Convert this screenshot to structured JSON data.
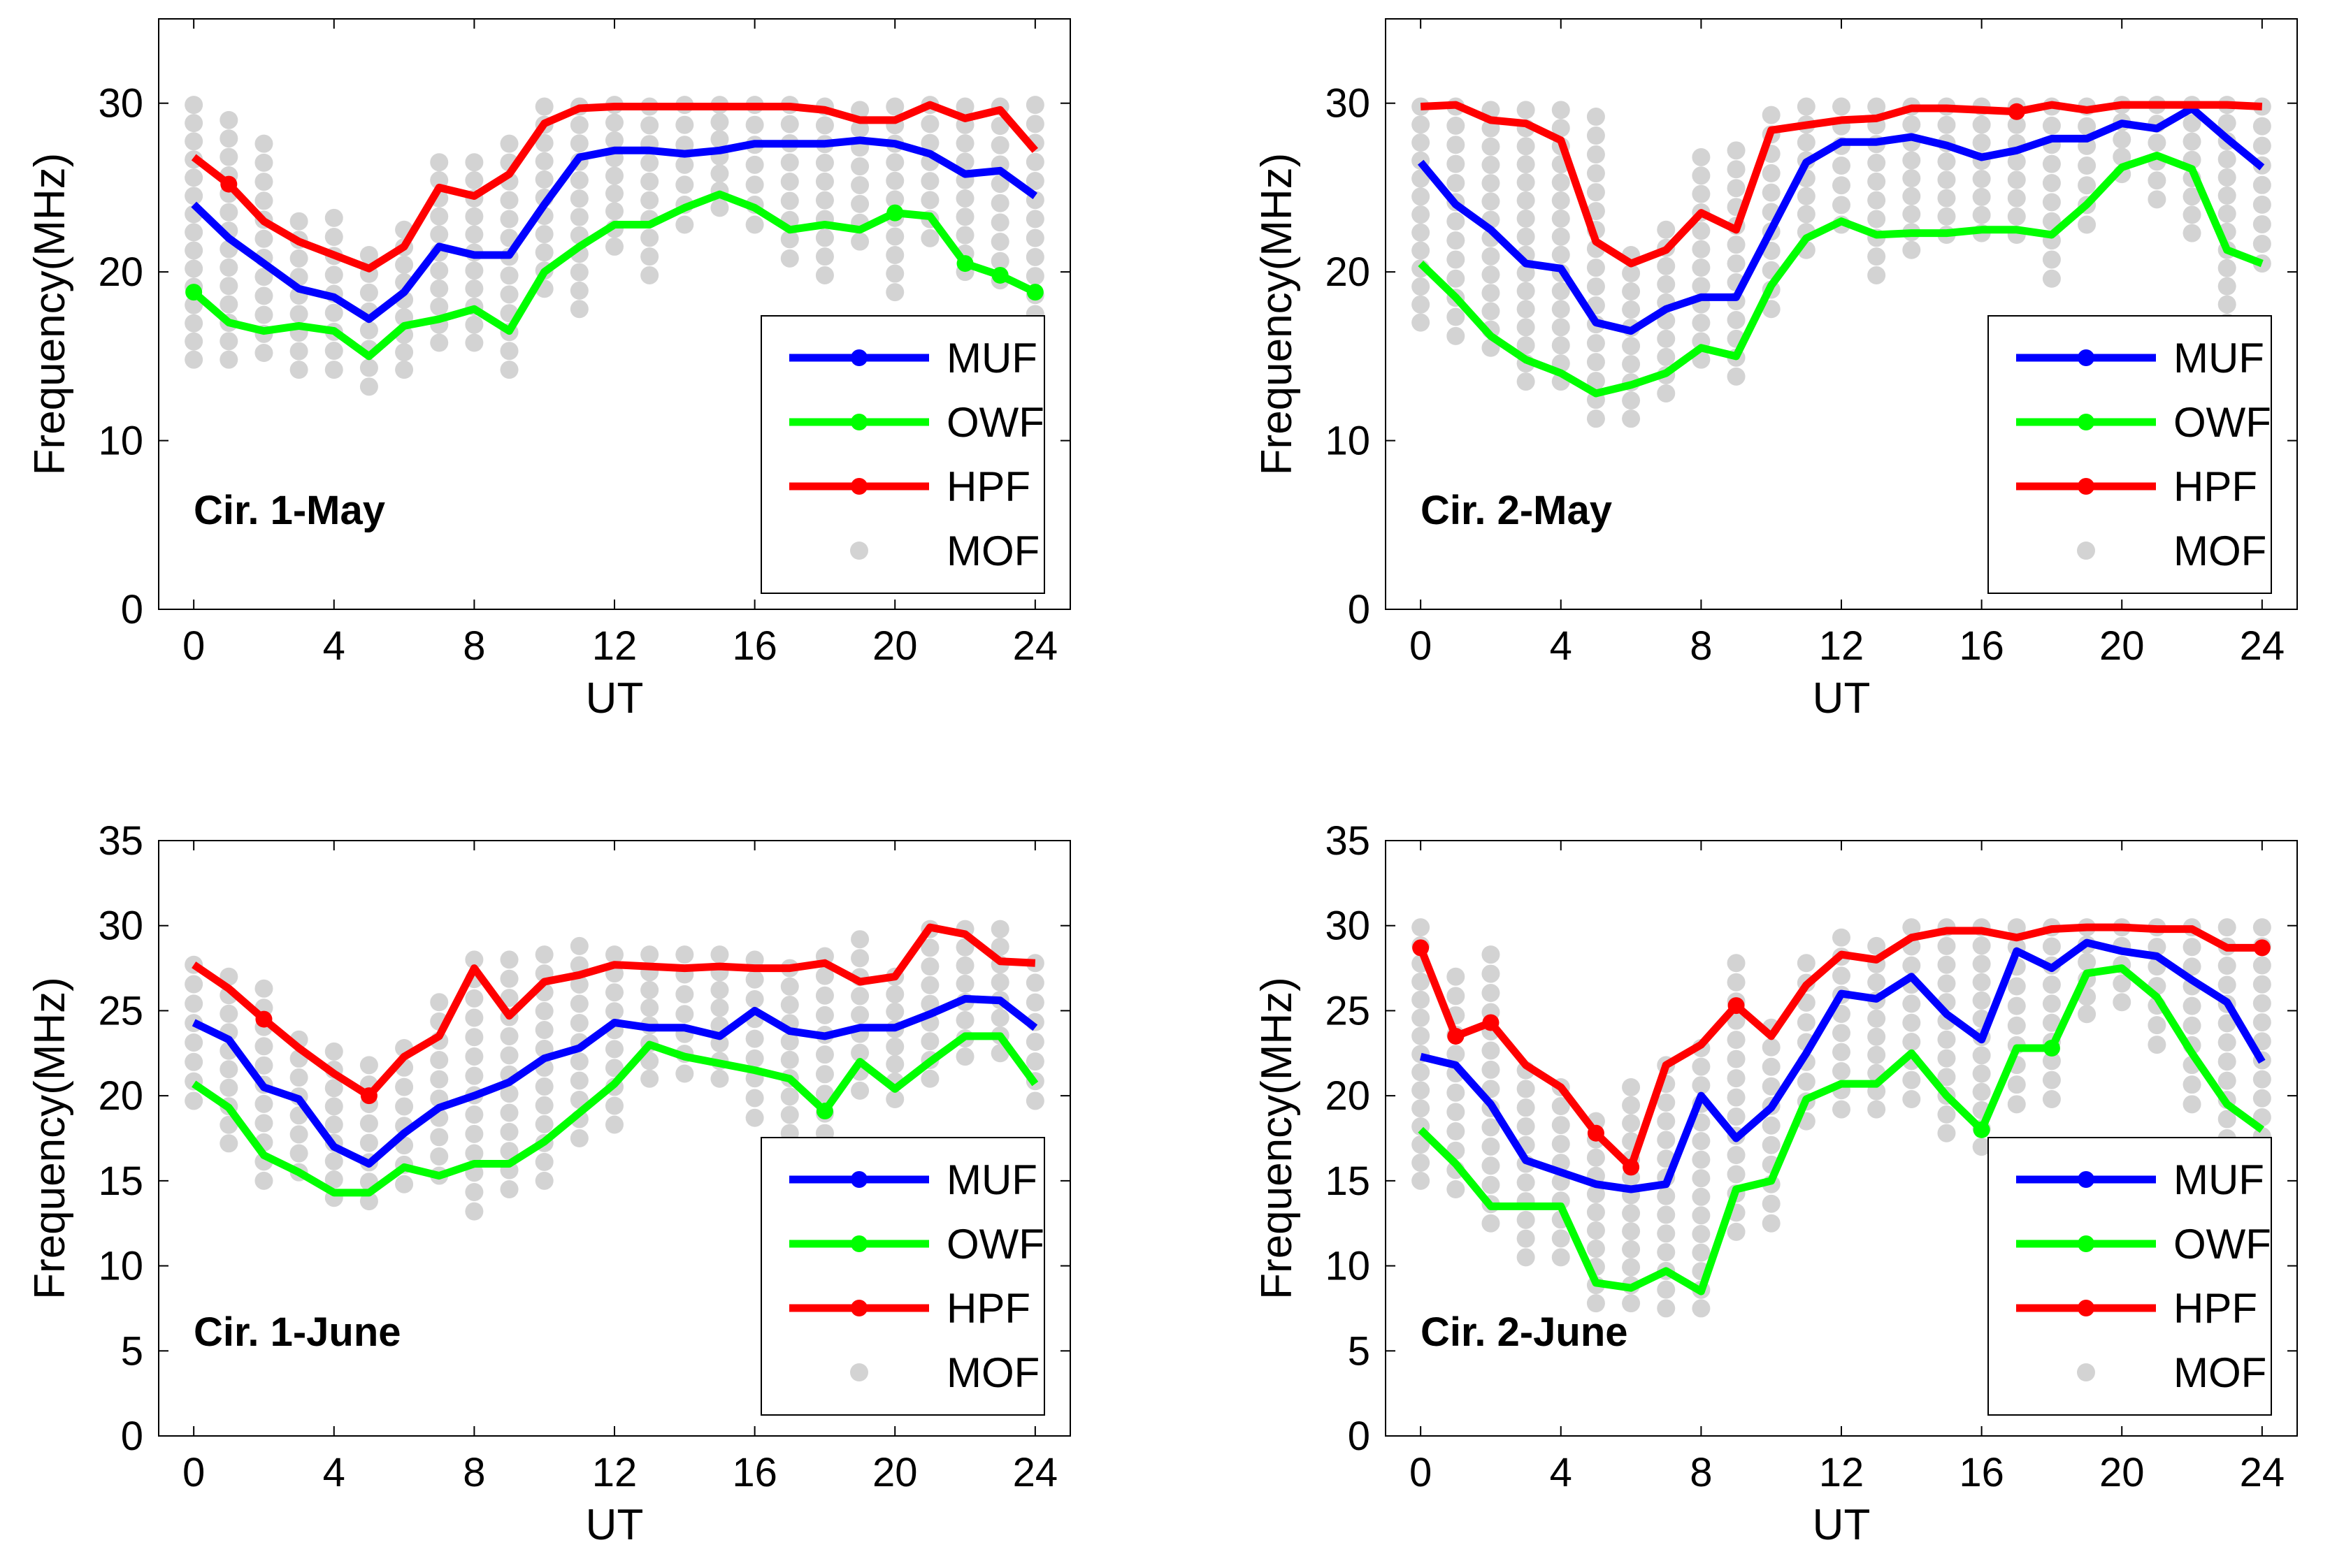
{
  "figure": {
    "colors": {
      "MUF": "#0000ff",
      "OWF": "#00ff00",
      "HPF": "#ff0000",
      "MOF": "#d3d3d3",
      "axis": "#000000"
    }
  },
  "chart_data": [
    {
      "type": "line",
      "panel": "top-left",
      "annotation": "Cir. 1-May",
      "xlabel": "UT",
      "ylabel": "Frequency(MHz)",
      "xlim": [
        -1,
        25
      ],
      "ylim": [
        0,
        35
      ],
      "xticks": [
        0,
        4,
        8,
        12,
        16,
        20,
        24
      ],
      "yticks": [
        0,
        10,
        20,
        30
      ],
      "legend": {
        "placement": "bottom-right",
        "entries": [
          "MUF",
          "OWF",
          "HPF",
          "MOF"
        ]
      },
      "x": [
        0,
        1,
        2,
        3,
        4,
        5,
        6,
        7,
        8,
        9,
        10,
        11,
        12,
        13,
        14,
        15,
        16,
        17,
        18,
        19,
        20,
        21,
        22,
        23,
        24
      ],
      "series": [
        {
          "name": "MUF",
          "values": [
            24.0,
            22.0,
            20.5,
            19.0,
            18.5,
            17.2,
            18.8,
            21.5,
            21.0,
            21.0,
            24.0,
            26.8,
            27.2,
            27.2,
            27.0,
            27.2,
            27.6,
            27.6,
            27.6,
            27.8,
            27.6,
            27.0,
            25.8,
            26.0,
            24.5
          ]
        },
        {
          "name": "OWF",
          "values": [
            18.8,
            17.0,
            16.5,
            16.8,
            16.5,
            15.0,
            16.8,
            17.2,
            17.8,
            16.5,
            20.0,
            21.5,
            22.8,
            22.8,
            23.8,
            24.6,
            23.8,
            22.5,
            22.8,
            22.5,
            23.5,
            23.3,
            20.5,
            19.8,
            18.8
          ]
        },
        {
          "name": "HPF",
          "values": [
            26.8,
            25.2,
            23.0,
            21.8,
            21.0,
            20.2,
            21.5,
            25.0,
            24.5,
            25.8,
            28.8,
            29.7,
            29.8,
            29.8,
            29.8,
            29.8,
            29.8,
            29.8,
            29.6,
            29.0,
            29.0,
            29.9,
            29.1,
            29.6,
            27.2
          ]
        }
      ],
      "markers": {
        "HPF": [
          1
        ],
        "OWF": [
          0,
          20,
          22,
          23,
          24
        ]
      },
      "mof_scatter": [
        {
          "x": 0,
          "min": 14.8,
          "max": 29.9
        },
        {
          "x": 1,
          "min": 14.8,
          "max": 29.0
        },
        {
          "x": 2,
          "min": 15.2,
          "max": 27.6
        },
        {
          "x": 3,
          "min": 14.2,
          "max": 23.0
        },
        {
          "x": 4,
          "min": 14.2,
          "max": 23.2
        },
        {
          "x": 5,
          "min": 13.2,
          "max": 21.0
        },
        {
          "x": 6,
          "min": 14.2,
          "max": 22.5
        },
        {
          "x": 7,
          "min": 15.8,
          "max": 26.5
        },
        {
          "x": 8,
          "min": 15.8,
          "max": 26.5
        },
        {
          "x": 9,
          "min": 14.2,
          "max": 27.6
        },
        {
          "x": 10,
          "min": 19.0,
          "max": 29.8
        },
        {
          "x": 11,
          "min": 17.8,
          "max": 29.8
        },
        {
          "x": 12,
          "min": 21.5,
          "max": 29.9
        },
        {
          "x": 13,
          "min": 19.8,
          "max": 29.8
        },
        {
          "x": 14,
          "min": 22.8,
          "max": 29.9
        },
        {
          "x": 15,
          "min": 23.8,
          "max": 29.9
        },
        {
          "x": 16,
          "min": 22.8,
          "max": 29.9
        },
        {
          "x": 17,
          "min": 20.8,
          "max": 29.9
        },
        {
          "x": 18,
          "min": 19.8,
          "max": 29.8
        },
        {
          "x": 19,
          "min": 21.8,
          "max": 29.6
        },
        {
          "x": 20,
          "min": 18.8,
          "max": 29.8
        },
        {
          "x": 21,
          "min": 22.0,
          "max": 29.9
        },
        {
          "x": 22,
          "min": 20.0,
          "max": 29.8
        },
        {
          "x": 23,
          "min": 19.5,
          "max": 29.8
        },
        {
          "x": 24,
          "min": 17.5,
          "max": 29.9
        }
      ]
    },
    {
      "type": "line",
      "panel": "top-right",
      "annotation": "Cir. 2-May",
      "xlabel": "UT",
      "ylabel": "Frequency(MHz)",
      "xlim": [
        -1,
        25
      ],
      "ylim": [
        0,
        35
      ],
      "xticks": [
        0,
        4,
        8,
        12,
        16,
        20,
        24
      ],
      "yticks": [
        0,
        10,
        20,
        30
      ],
      "legend": {
        "placement": "bottom-right",
        "entries": [
          "MUF",
          "OWF",
          "HPF",
          "MOF"
        ]
      },
      "x": [
        0,
        1,
        2,
        3,
        4,
        5,
        6,
        7,
        8,
        9,
        10,
        11,
        12,
        13,
        14,
        15,
        16,
        17,
        18,
        19,
        20,
        21,
        22,
        23,
        24
      ],
      "series": [
        {
          "name": "MUF",
          "values": [
            26.5,
            24.0,
            22.5,
            20.5,
            20.2,
            17.0,
            16.5,
            17.8,
            18.5,
            18.5,
            22.5,
            26.5,
            27.7,
            27.7,
            28.0,
            27.5,
            26.8,
            27.2,
            27.9,
            27.9,
            28.8,
            28.5,
            29.7,
            27.9,
            26.2
          ]
        },
        {
          "name": "OWF",
          "values": [
            20.5,
            18.5,
            16.2,
            14.8,
            14.0,
            12.8,
            13.3,
            14.0,
            15.5,
            15.0,
            19.2,
            22.0,
            23.0,
            22.2,
            22.3,
            22.3,
            22.5,
            22.5,
            22.2,
            24.0,
            26.2,
            26.9,
            26.1,
            21.3,
            20.5
          ]
        },
        {
          "name": "HPF",
          "values": [
            29.8,
            29.9,
            29.0,
            28.8,
            27.8,
            21.8,
            20.5,
            21.3,
            23.5,
            22.5,
            28.4,
            28.7,
            29.0,
            29.1,
            29.7,
            29.7,
            29.6,
            29.5,
            29.9,
            29.6,
            29.9,
            29.9,
            29.9,
            29.9,
            29.8
          ]
        }
      ],
      "markers": {
        "HPF": [
          17
        ]
      },
      "mof_scatter": [
        {
          "x": 0,
          "min": 17.0,
          "max": 29.8
        },
        {
          "x": 1,
          "min": 16.2,
          "max": 29.8
        },
        {
          "x": 2,
          "min": 15.5,
          "max": 29.6
        },
        {
          "x": 3,
          "min": 13.5,
          "max": 29.6
        },
        {
          "x": 4,
          "min": 13.5,
          "max": 29.6
        },
        {
          "x": 5,
          "min": 11.3,
          "max": 29.2
        },
        {
          "x": 6,
          "min": 11.3,
          "max": 21.0
        },
        {
          "x": 7,
          "min": 12.8,
          "max": 22.5
        },
        {
          "x": 8,
          "min": 14.8,
          "max": 26.8
        },
        {
          "x": 9,
          "min": 13.8,
          "max": 27.2
        },
        {
          "x": 10,
          "min": 17.8,
          "max": 29.3
        },
        {
          "x": 11,
          "min": 21.3,
          "max": 29.8
        },
        {
          "x": 12,
          "min": 22.8,
          "max": 29.8
        },
        {
          "x": 13,
          "min": 19.8,
          "max": 29.8
        },
        {
          "x": 14,
          "min": 21.3,
          "max": 29.8
        },
        {
          "x": 15,
          "min": 22.2,
          "max": 29.8
        },
        {
          "x": 16,
          "min": 22.3,
          "max": 29.8
        },
        {
          "x": 17,
          "min": 22.2,
          "max": 29.8
        },
        {
          "x": 18,
          "min": 19.6,
          "max": 29.8
        },
        {
          "x": 19,
          "min": 22.8,
          "max": 29.8
        },
        {
          "x": 20,
          "min": 25.8,
          "max": 29.9
        },
        {
          "x": 21,
          "min": 24.3,
          "max": 29.9
        },
        {
          "x": 22,
          "min": 22.3,
          "max": 29.9
        },
        {
          "x": 23,
          "min": 17.0,
          "max": 29.9
        },
        {
          "x": 24,
          "min": 20.5,
          "max": 29.8
        }
      ]
    },
    {
      "type": "line",
      "panel": "bottom-left",
      "annotation": "Cir. 1-June",
      "xlabel": "UT",
      "ylabel": "Frequency(MHz)",
      "xlim": [
        -1,
        25
      ],
      "ylim": [
        0,
        35
      ],
      "xticks": [
        0,
        4,
        8,
        12,
        16,
        20,
        24
      ],
      "yticks": [
        0,
        5,
        10,
        15,
        20,
        25,
        30,
        35
      ],
      "legend": {
        "placement": "bottom-right",
        "entries": [
          "MUF",
          "OWF",
          "HPF",
          "MOF"
        ]
      },
      "x": [
        0,
        1,
        2,
        3,
        4,
        5,
        6,
        7,
        8,
        9,
        10,
        11,
        12,
        13,
        14,
        15,
        16,
        17,
        18,
        19,
        20,
        21,
        22,
        23,
        24
      ],
      "series": [
        {
          "name": "MUF",
          "values": [
            24.3,
            23.3,
            20.5,
            19.8,
            17.0,
            16.0,
            17.8,
            19.3,
            20.0,
            20.8,
            22.2,
            22.8,
            24.3,
            24.0,
            24.0,
            23.5,
            25.0,
            23.8,
            23.5,
            24.0,
            24.0,
            24.8,
            25.7,
            25.6,
            24.0
          ]
        },
        {
          "name": "OWF",
          "values": [
            20.7,
            19.3,
            16.5,
            15.5,
            14.3,
            14.3,
            15.8,
            15.3,
            16.0,
            16.0,
            17.3,
            19.0,
            20.7,
            23.0,
            22.3,
            21.9,
            21.5,
            21.0,
            19.1,
            22.0,
            20.4,
            22.0,
            23.5,
            23.5,
            20.7
          ]
        },
        {
          "name": "HPF",
          "values": [
            27.7,
            26.3,
            24.5,
            22.8,
            21.3,
            20.0,
            22.3,
            23.5,
            27.5,
            24.7,
            26.7,
            27.1,
            27.7,
            27.6,
            27.5,
            27.6,
            27.5,
            27.5,
            27.8,
            26.7,
            27.0,
            29.9,
            29.5,
            27.9,
            27.8
          ]
        }
      ],
      "markers": {
        "HPF": [
          2,
          5
        ],
        "OWF": [
          18
        ]
      },
      "mof_scatter": [
        {
          "x": 0,
          "min": 19.7,
          "max": 27.7
        },
        {
          "x": 1,
          "min": 17.2,
          "max": 27.0
        },
        {
          "x": 2,
          "min": 15.0,
          "max": 26.3
        },
        {
          "x": 3,
          "min": 15.5,
          "max": 23.3
        },
        {
          "x": 4,
          "min": 14.0,
          "max": 22.6
        },
        {
          "x": 5,
          "min": 13.8,
          "max": 21.8
        },
        {
          "x": 6,
          "min": 14.8,
          "max": 22.8
        },
        {
          "x": 7,
          "min": 15.3,
          "max": 25.5
        },
        {
          "x": 8,
          "min": 13.2,
          "max": 28.0
        },
        {
          "x": 9,
          "min": 14.5,
          "max": 28.0
        },
        {
          "x": 10,
          "min": 15.0,
          "max": 28.3
        },
        {
          "x": 11,
          "min": 17.5,
          "max": 28.8
        },
        {
          "x": 12,
          "min": 18.3,
          "max": 28.3
        },
        {
          "x": 13,
          "min": 21.0,
          "max": 28.3
        },
        {
          "x": 14,
          "min": 21.3,
          "max": 28.3
        },
        {
          "x": 15,
          "min": 21.0,
          "max": 28.3
        },
        {
          "x": 16,
          "min": 18.7,
          "max": 28.0
        },
        {
          "x": 17,
          "min": 17.8,
          "max": 27.5
        },
        {
          "x": 18,
          "min": 17.8,
          "max": 28.2
        },
        {
          "x": 19,
          "min": 20.3,
          "max": 29.2
        },
        {
          "x": 20,
          "min": 19.8,
          "max": 27.0
        },
        {
          "x": 21,
          "min": 21.0,
          "max": 29.8
        },
        {
          "x": 22,
          "min": 22.3,
          "max": 29.8
        },
        {
          "x": 23,
          "min": 22.5,
          "max": 29.8
        },
        {
          "x": 24,
          "min": 19.7,
          "max": 27.8
        }
      ]
    },
    {
      "type": "line",
      "panel": "bottom-right",
      "annotation": "Cir. 2-June",
      "xlabel": "UT",
      "ylabel": "Frequency(MHz)",
      "xlim": [
        -1,
        25
      ],
      "ylim": [
        0,
        35
      ],
      "xticks": [
        0,
        4,
        8,
        12,
        16,
        20,
        24
      ],
      "yticks": [
        0,
        5,
        10,
        15,
        20,
        25,
        30,
        35
      ],
      "legend": {
        "placement": "bottom-right",
        "entries": [
          "MUF",
          "OWF",
          "HPF",
          "MOF"
        ]
      },
      "x": [
        0,
        1,
        2,
        3,
        4,
        5,
        6,
        7,
        8,
        9,
        10,
        11,
        12,
        13,
        14,
        15,
        16,
        17,
        18,
        19,
        20,
        21,
        22,
        23,
        24
      ],
      "series": [
        {
          "name": "MUF",
          "values": [
            22.3,
            21.8,
            19.5,
            16.2,
            15.5,
            14.8,
            14.5,
            14.8,
            20.0,
            17.5,
            19.3,
            22.5,
            26.0,
            25.7,
            27.0,
            24.8,
            23.3,
            28.5,
            27.5,
            29.0,
            28.5,
            28.2,
            26.8,
            25.5,
            22.0
          ]
        },
        {
          "name": "OWF",
          "values": [
            18.0,
            16.0,
            13.5,
            13.5,
            13.5,
            9.0,
            8.7,
            9.7,
            8.5,
            14.5,
            15.0,
            19.8,
            20.7,
            20.7,
            22.5,
            20.0,
            18.0,
            22.8,
            22.8,
            27.2,
            27.5,
            25.8,
            22.5,
            19.5,
            18.0
          ]
        },
        {
          "name": "HPF",
          "values": [
            28.7,
            23.5,
            24.3,
            21.8,
            20.5,
            17.8,
            15.8,
            21.8,
            23.0,
            25.3,
            23.5,
            26.5,
            28.3,
            28.0,
            29.3,
            29.7,
            29.7,
            29.3,
            29.8,
            29.9,
            29.9,
            29.8,
            29.8,
            28.7,
            28.7
          ]
        }
      ],
      "markers": {
        "HPF": [
          0,
          1,
          2,
          5,
          6,
          9,
          24
        ],
        "OWF": [
          16,
          18
        ]
      },
      "mof_scatter": [
        {
          "x": 0,
          "min": 15.0,
          "max": 29.9
        },
        {
          "x": 1,
          "min": 14.5,
          "max": 27.0
        },
        {
          "x": 2,
          "min": 12.5,
          "max": 28.3
        },
        {
          "x": 3,
          "min": 10.5,
          "max": 21.5
        },
        {
          "x": 4,
          "min": 10.5,
          "max": 20.5
        },
        {
          "x": 5,
          "min": 7.8,
          "max": 18.5
        },
        {
          "x": 6,
          "min": 7.8,
          "max": 20.5
        },
        {
          "x": 7,
          "min": 7.5,
          "max": 21.8
        },
        {
          "x": 8,
          "min": 7.5,
          "max": 22.8
        },
        {
          "x": 9,
          "min": 12.0,
          "max": 27.8
        },
        {
          "x": 10,
          "min": 12.5,
          "max": 24.0
        },
        {
          "x": 11,
          "min": 18.5,
          "max": 27.8
        },
        {
          "x": 12,
          "min": 19.2,
          "max": 29.3
        },
        {
          "x": 13,
          "min": 19.2,
          "max": 28.8
        },
        {
          "x": 14,
          "min": 19.8,
          "max": 29.9
        },
        {
          "x": 15,
          "min": 17.8,
          "max": 29.9
        },
        {
          "x": 16,
          "min": 17.0,
          "max": 29.9
        },
        {
          "x": 17,
          "min": 19.5,
          "max": 29.9
        },
        {
          "x": 18,
          "min": 19.8,
          "max": 29.9
        },
        {
          "x": 19,
          "min": 24.8,
          "max": 29.9
        },
        {
          "x": 20,
          "min": 25.5,
          "max": 29.9
        },
        {
          "x": 21,
          "min": 23.0,
          "max": 29.9
        },
        {
          "x": 22,
          "min": 19.5,
          "max": 29.9
        },
        {
          "x": 23,
          "min": 17.5,
          "max": 29.9
        },
        {
          "x": 24,
          "min": 16.5,
          "max": 29.9
        }
      ]
    }
  ]
}
